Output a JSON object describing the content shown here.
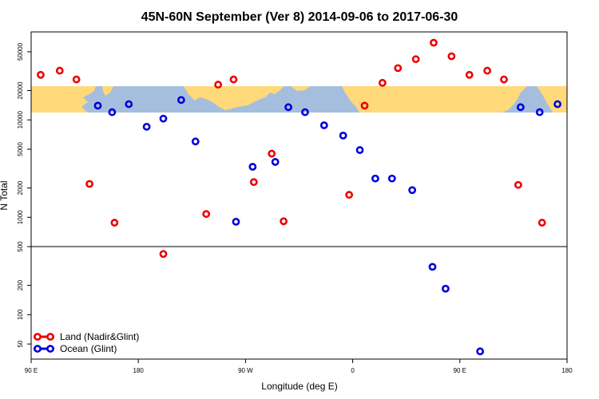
{
  "chart_data": {
    "type": "scatter",
    "title": "45N-60N September (Ver 8)   2014-09-06 to 2017-06-30",
    "xlabel": "Longitude (deg E)",
    "ylabel": "N Total",
    "x_ticks": [
      {
        "value": 90,
        "label": "90 E"
      },
      {
        "value": 180,
        "label": "180"
      },
      {
        "value": 270,
        "label": "90 W"
      },
      {
        "value": 360,
        "label": "0"
      },
      {
        "value": 450,
        "label": "90 E"
      },
      {
        "value": 540,
        "label": "180"
      }
    ],
    "xlim": [
      90,
      540
    ],
    "y_scale": "log",
    "ylim": [
      35,
      80000
    ],
    "y_ticks": [
      50,
      100,
      200,
      500,
      1000,
      2000,
      5000,
      10000,
      20000,
      50000
    ],
    "reference_line": 500,
    "map_band": {
      "lat_range": "45N-60N",
      "colors": {
        "land": "#FFD97A",
        "ocean": "#A6BEDD"
      }
    },
    "legend_position": "bottom-left",
    "series": [
      {
        "name": "Land (Nadir&Glint)",
        "color": "#EE0000",
        "points": [
          {
            "x": 98,
            "y": 29000
          },
          {
            "x": 114,
            "y": 32000
          },
          {
            "x": 128,
            "y": 26000
          },
          {
            "x": 139,
            "y": 2200
          },
          {
            "x": 160,
            "y": 880
          },
          {
            "x": 201,
            "y": 420
          },
          {
            "x": 237,
            "y": 1080
          },
          {
            "x": 247,
            "y": 23000
          },
          {
            "x": 260,
            "y": 26000
          },
          {
            "x": 277,
            "y": 2300
          },
          {
            "x": 292,
            "y": 4500
          },
          {
            "x": 302,
            "y": 910
          },
          {
            "x": 357,
            "y": 1700
          },
          {
            "x": 370,
            "y": 14000
          },
          {
            "x": 385,
            "y": 24000
          },
          {
            "x": 398,
            "y": 34000
          },
          {
            "x": 413,
            "y": 42000
          },
          {
            "x": 428,
            "y": 62000
          },
          {
            "x": 443,
            "y": 45000
          },
          {
            "x": 458,
            "y": 29000
          },
          {
            "x": 473,
            "y": 32000
          },
          {
            "x": 487,
            "y": 26000
          },
          {
            "x": 499,
            "y": 2150
          },
          {
            "x": 519,
            "y": 880
          }
        ]
      },
      {
        "name": "Ocean (Glint)",
        "color": "#0000DD",
        "points": [
          {
            "x": 146,
            "y": 14000
          },
          {
            "x": 158,
            "y": 12000
          },
          {
            "x": 172,
            "y": 14500
          },
          {
            "x": 187,
            "y": 8500
          },
          {
            "x": 201,
            "y": 10300
          },
          {
            "x": 216,
            "y": 16000
          },
          {
            "x": 228,
            "y": 6000
          },
          {
            "x": 262,
            "y": 900
          },
          {
            "x": 276,
            "y": 3300
          },
          {
            "x": 295,
            "y": 3700
          },
          {
            "x": 306,
            "y": 13500
          },
          {
            "x": 320,
            "y": 12000
          },
          {
            "x": 336,
            "y": 8800
          },
          {
            "x": 352,
            "y": 6900
          },
          {
            "x": 366,
            "y": 4900
          },
          {
            "x": 379,
            "y": 2500
          },
          {
            "x": 393,
            "y": 2500
          },
          {
            "x": 410,
            "y": 1900
          },
          {
            "x": 427,
            "y": 310
          },
          {
            "x": 438,
            "y": 185
          },
          {
            "x": 467,
            "y": 42
          },
          {
            "x": 501,
            "y": 13500
          },
          {
            "x": 517,
            "y": 12000
          },
          {
            "x": 532,
            "y": 14500
          }
        ]
      }
    ]
  }
}
